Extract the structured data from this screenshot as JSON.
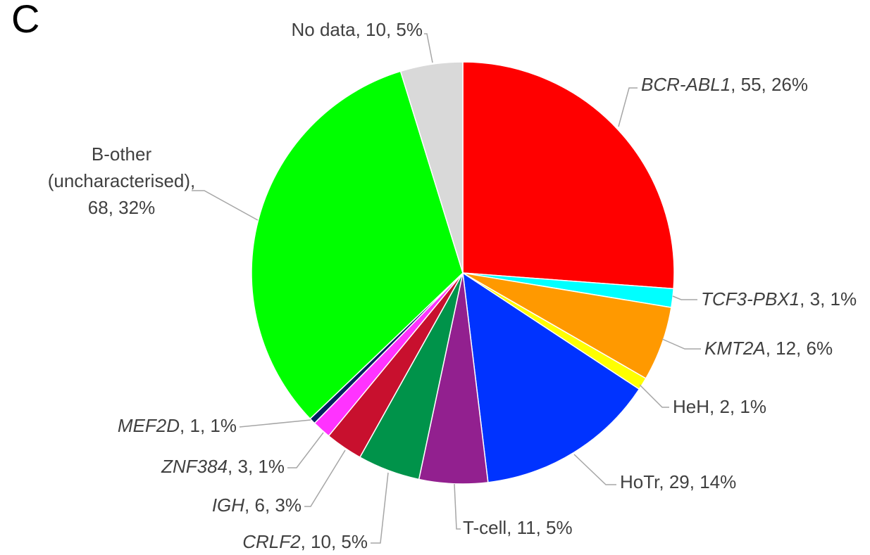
{
  "chart_data": {
    "type": "pie",
    "panel_label": "C",
    "categories": [
      "BCR-ABL1",
      "TCF3-PBX1",
      "KMT2A",
      "HeH",
      "HoTr",
      "T-cell",
      "CRLF2",
      "IGH",
      "ZNF384",
      "MEF2D",
      "B-other (uncharacterised)",
      "No data"
    ],
    "values": [
      55,
      3,
      12,
      2,
      29,
      11,
      10,
      6,
      3,
      1,
      68,
      10
    ],
    "value_labels": [
      "55, 26%",
      "3, 1%",
      "12, 6%",
      "2, 1%",
      "29, 14%",
      "11, 5%",
      "10, 5%",
      "6, 3%",
      "3, 1%",
      "1, 1%",
      "68, 32%",
      "10, 5%"
    ],
    "label_separator": ", ",
    "italic": [
      true,
      true,
      true,
      false,
      false,
      false,
      true,
      true,
      true,
      true,
      false,
      false
    ],
    "colors": [
      "#ff0000",
      "#00ffff",
      "#ff9900",
      "#ffff00",
      "#0033ff",
      "#92208f",
      "#00934a",
      "#c8102e",
      "#ff33ff",
      "#002060",
      "#00ff00",
      "#d9d9d9"
    ]
  }
}
